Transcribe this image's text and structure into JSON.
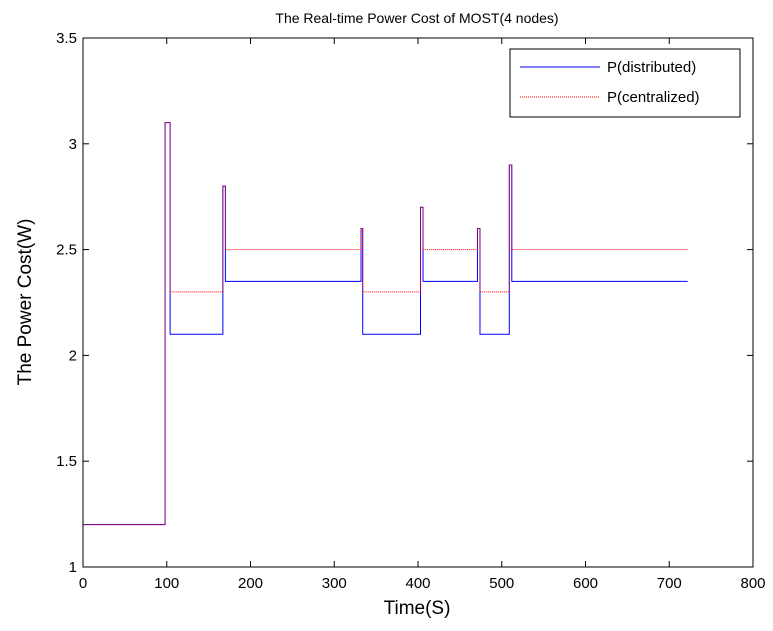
{
  "chart_data": {
    "type": "line",
    "title": "The Real-time Power Cost of MOST(4 nodes)",
    "xlabel": "Time(S)",
    "ylabel": "The Power Cost(W)",
    "xlim": [
      0,
      800
    ],
    "ylim": [
      1,
      3.5
    ],
    "xticks": [
      "0",
      "100",
      "200",
      "300",
      "400",
      "500",
      "600",
      "700",
      "800"
    ],
    "yticks": [
      "1",
      "1.5",
      "2",
      "2.5",
      "3",
      "3.5"
    ],
    "grid": false,
    "legend_position": "top-right",
    "series": [
      {
        "name": "P(distributed)",
        "color": "#0000ff",
        "style": "solid",
        "x": [
          0,
          98,
          98,
          100,
          100,
          104,
          104,
          167,
          167,
          170,
          170,
          332,
          332,
          334,
          334,
          403,
          403,
          406,
          406,
          471,
          471,
          474,
          474,
          509,
          509,
          512,
          512,
          722
        ],
        "y": [
          1.2,
          1.2,
          3.1,
          3.1,
          3.1,
          3.1,
          2.1,
          2.1,
          2.8,
          2.8,
          2.35,
          2.35,
          2.6,
          2.6,
          2.1,
          2.1,
          2.7,
          2.7,
          2.35,
          2.35,
          2.6,
          2.6,
          2.1,
          2.1,
          2.9,
          2.9,
          2.35,
          2.35
        ]
      },
      {
        "name": "P(centralized)",
        "color": "#ff0000",
        "style": "dotted",
        "x": [
          0,
          98,
          98,
          104,
          104,
          167,
          167,
          170,
          170,
          332,
          332,
          334,
          334,
          403,
          403,
          406,
          406,
          471,
          471,
          474,
          474,
          509,
          509,
          512,
          512,
          722
        ],
        "y": [
          1.2,
          1.2,
          3.1,
          3.1,
          2.3,
          2.3,
          2.8,
          2.8,
          2.5,
          2.5,
          2.6,
          2.6,
          2.3,
          2.3,
          2.7,
          2.7,
          2.5,
          2.5,
          2.6,
          2.6,
          2.3,
          2.3,
          2.9,
          2.9,
          2.5,
          2.5
        ]
      }
    ]
  }
}
